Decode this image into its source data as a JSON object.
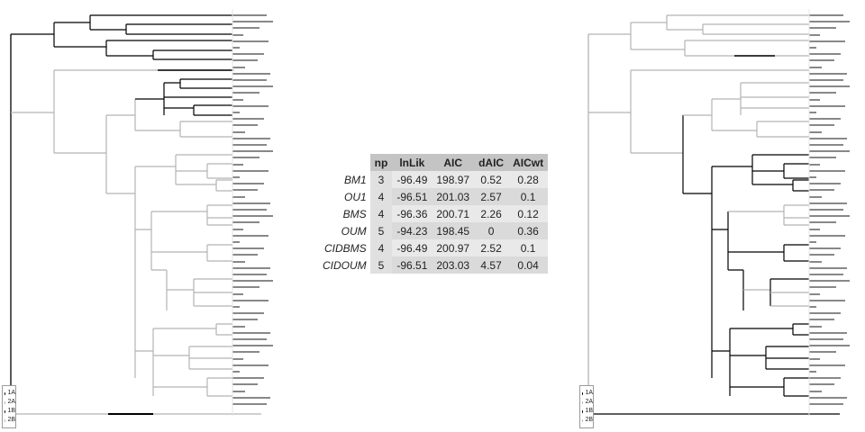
{
  "colors": {
    "black_branch": "#000000",
    "gray_branch": "#b3b3b3",
    "table_header": "#c4c4c4",
    "table_cell": "#e9e9e9"
  },
  "legend": [
    {
      "label": "1A",
      "color": "#000000"
    },
    {
      "label": "2A",
      "color": "#b3b3b3"
    },
    {
      "label": "1B",
      "color": "#000000"
    },
    {
      "label": "2B",
      "color": "#b3b3b3"
    }
  ],
  "table": {
    "headers": [
      "np",
      "lnLik",
      "AIC",
      "dAIC",
      "AICwt"
    ],
    "rows": [
      {
        "name": "BM1",
        "values": [
          "3",
          "-96.49",
          "198.97",
          "0.52",
          "0.28"
        ]
      },
      {
        "name": "OU1",
        "values": [
          "4",
          "-96.51",
          "201.03",
          "2.57",
          "0.1"
        ]
      },
      {
        "name": "BMS",
        "values": [
          "4",
          "-96.36",
          "200.71",
          "2.26",
          "0.12"
        ]
      },
      {
        "name": "OUM",
        "values": [
          "5",
          "-94.23",
          "198.45",
          "0",
          "0.36"
        ]
      },
      {
        "name": "CIDBMS",
        "values": [
          "4",
          "-96.49",
          "200.97",
          "2.52",
          "0.1"
        ]
      },
      {
        "name": "CIDOUM",
        "values": [
          "5",
          "-96.51",
          "203.03",
          "4.57",
          "0.04"
        ]
      }
    ]
  }
}
